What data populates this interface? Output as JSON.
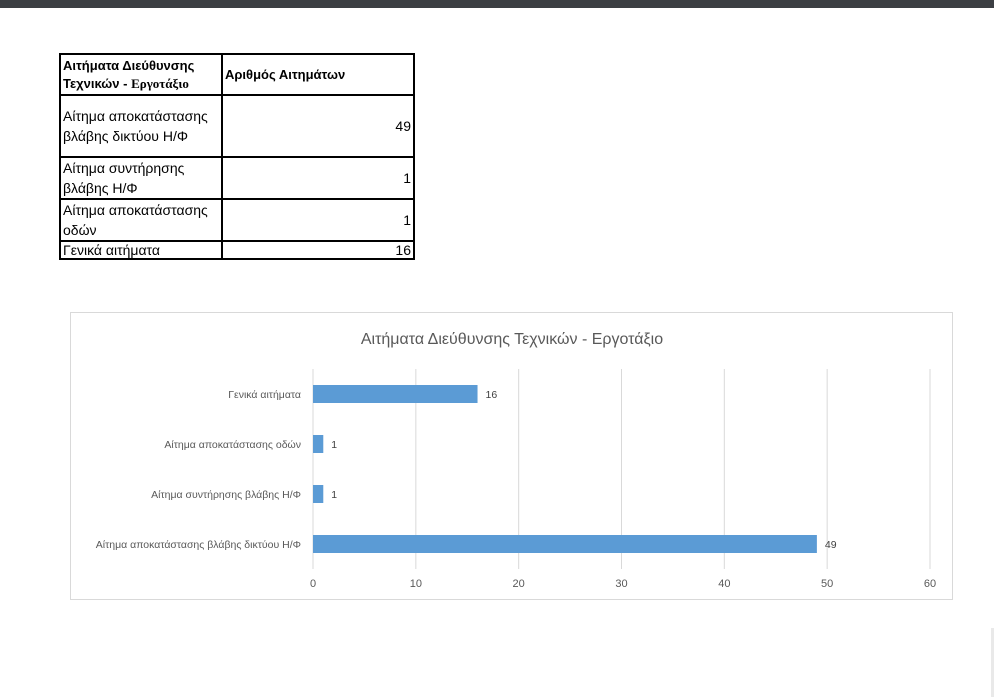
{
  "table": {
    "header": {
      "col1_line1": "Αιτήματα Διεύθυνσης",
      "col1_line2_a": "Τεχνικών - ",
      "col1_line2_b": "Εργοτάξιο",
      "col2": "Αριθμός Αιτημάτων"
    },
    "rows": [
      {
        "label_line1": "Αίτημα αποκατάστασης",
        "label_line2": "βλάβης δικτύου Η/Φ",
        "value": "49"
      },
      {
        "label_line1": "Αίτημα συντήρησης",
        "label_line2": "βλάβης Η/Φ",
        "value": "1"
      },
      {
        "label_line1": "Αίτημα αποκατάστασης",
        "label_line2": "οδών",
        "value": "1"
      },
      {
        "label_line1": "Γενικά αιτήματα",
        "label_line2": "",
        "value": "16"
      }
    ]
  },
  "chart_data": {
    "type": "bar",
    "orientation": "horizontal",
    "title": "Αιτήματα Διεύθυνσης Τεχνικών - Εργοτάξιο",
    "categories": [
      "Γενικά αιτήματα",
      "Αίτημα αποκατάστασης οδών",
      "Αίτημα συντήρησης βλάβης Η/Φ",
      "Αίτημα αποκατάστασης βλάβης δικτύου Η/Φ"
    ],
    "values": [
      16,
      1,
      1,
      49
    ],
    "xlim": [
      0,
      60
    ],
    "xticks": [
      0,
      10,
      20,
      30,
      40,
      50,
      60
    ],
    "grid": "vertical",
    "legend": "none",
    "bar_color": "#5b9bd5",
    "grid_color": "#d9d9d9",
    "text_color": "#595959"
  }
}
